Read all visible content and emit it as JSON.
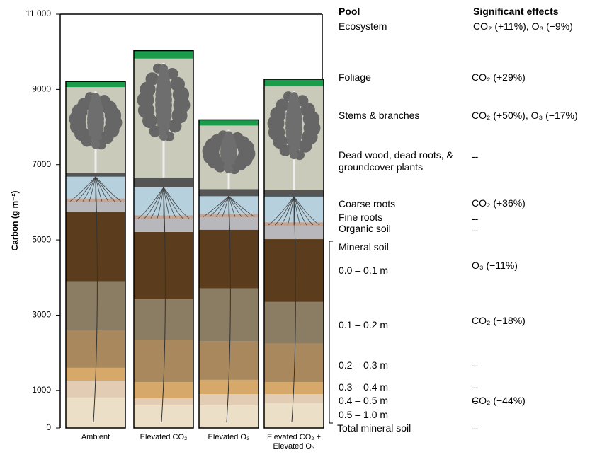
{
  "chart_data": {
    "type": "bar",
    "stacked": true,
    "y_label": "Carbon (g m⁻²)",
    "categories": [
      "Ambient",
      "Elevated CO₂",
      "Elevated O₃",
      "Elevated CO₂ + Elevated O₃"
    ],
    "ylim": [
      0,
      11000
    ],
    "yticks": [
      0,
      1000,
      3000,
      5000,
      7000,
      9000,
      {
        "value": 11000,
        "label": "11 000"
      }
    ],
    "pool_header": "Pool",
    "effects_header": "Significant effects",
    "ecosystem": {
      "name": "Ecosystem",
      "effect": "CO₂ (+11%), O₃ (−9%)"
    },
    "mineral_soil": {
      "name": "Mineral soil"
    },
    "total_mineral_soil": {
      "name": "Total mineral soil",
      "effect": "--"
    },
    "series": [
      {
        "name": "0.5 – 1.0 m",
        "effect": "--",
        "color": "#ecdfc8",
        "values": [
          810,
          600,
          600,
          660
        ]
      },
      {
        "name": "0.4 – 0.5 m",
        "effect": "CO₂ (−44%)",
        "color": "#e3ccb4",
        "values": [
          450,
          190,
          300,
          240
        ]
      },
      {
        "name": "0.3 – 0.4 m",
        "effect": "--",
        "color": "#d6a96a",
        "values": [
          340,
          430,
          380,
          320
        ]
      },
      {
        "name": "0.2 – 0.3 m",
        "effect": "--",
        "color": "#a8885c",
        "values": [
          1000,
          1130,
          1020,
          1020
        ]
      },
      {
        "name": "0.1 – 0.2 m",
        "effect": "CO₂ (−18%)",
        "color": "#8b7d64",
        "values": [
          1300,
          1070,
          1410,
          1110
        ]
      },
      {
        "name": "0.0 – 0.1 m",
        "effect": "O₃ (−11%)",
        "color": "#5b3d1d",
        "values": [
          1840,
          1790,
          1560,
          1670
        ]
      },
      {
        "name": "Organic soil",
        "effect": "--",
        "color": "#b8b8bc",
        "values": [
          260,
          340,
          320,
          340
        ]
      },
      {
        "name": "Fine roots",
        "effect": "--",
        "color": "#c4a492",
        "values": [
          100,
          100,
          100,
          110
        ]
      },
      {
        "name": "Coarse roots",
        "effect": "CO₂ (+36%)",
        "color": "#b7d0dd",
        "values": [
          580,
          750,
          470,
          680
        ]
      },
      {
        "name": "Dead wood, dead roots, & groundcover plants",
        "effect": "--",
        "color": "#555555",
        "values": [
          100,
          260,
          190,
          170
        ]
      },
      {
        "name": "Stems & branches",
        "effect": "CO₂ (+50%), O₃ (−17%)",
        "color": "#cacaba",
        "values": [
          2280,
          3160,
          1690,
          2760
        ]
      },
      {
        "name": "Foliage",
        "effect": "CO₂ (+29%)",
        "color": "#1a9c4a",
        "values": [
          150,
          210,
          150,
          190
        ]
      }
    ]
  }
}
